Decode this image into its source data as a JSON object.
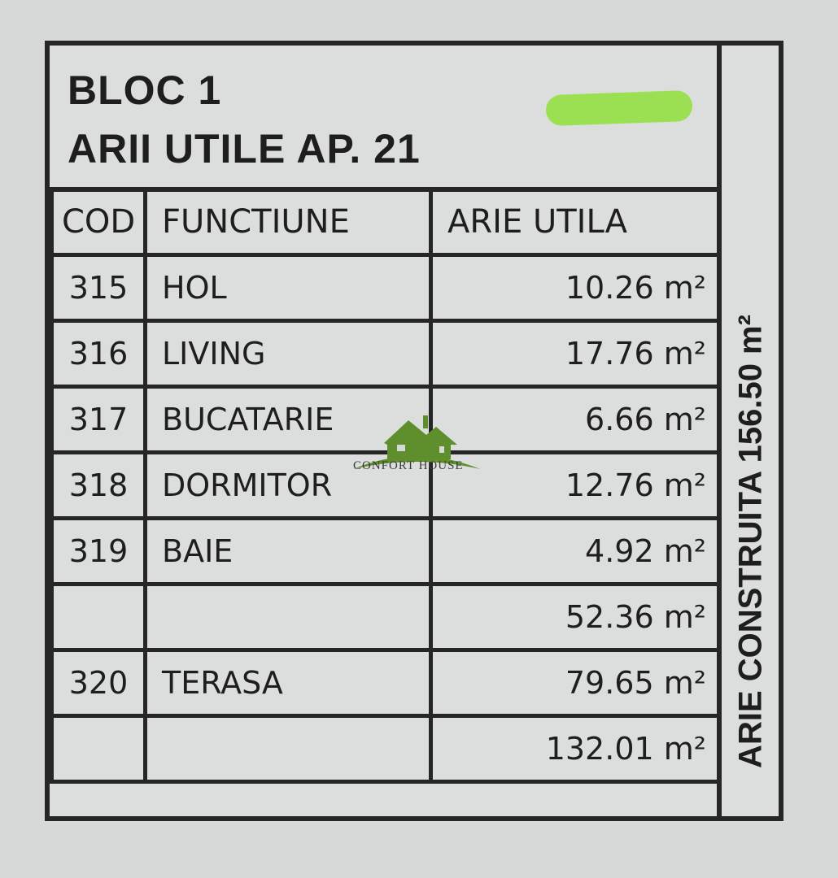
{
  "title": {
    "line1": "BLOC 1",
    "line2": "ARII UTILE AP. 21"
  },
  "highlight_color": "#8fe03a",
  "headers": {
    "cod": "COD",
    "functiune": "FUNCTIUNE",
    "arie": "ARIE  UTILA"
  },
  "rows": [
    {
      "cod": "315",
      "functiune": "HOL",
      "arie": "10.26 m²"
    },
    {
      "cod": "316",
      "functiune": "LIVING",
      "arie": "17.76 m²"
    },
    {
      "cod": "317",
      "functiune": "BUCATARIE",
      "arie": "6.66 m²"
    },
    {
      "cod": "318",
      "functiune": "DORMITOR",
      "arie": "12.76 m²"
    },
    {
      "cod": "319",
      "functiune": "BAIE",
      "arie": "4.92 m²"
    },
    {
      "cod": "",
      "functiune": "",
      "arie": "52.36 m²"
    },
    {
      "cod": "320",
      "functiune": "TERASA",
      "arie": "79.65 m²"
    },
    {
      "cod": "",
      "functiune": "",
      "arie": "132.01 m²"
    }
  ],
  "arie_construita": "ARIE CONSTRUITA  156.50 m²",
  "watermark": {
    "text": "CONFORT HOUSE",
    "color": "#5e8f2c"
  }
}
